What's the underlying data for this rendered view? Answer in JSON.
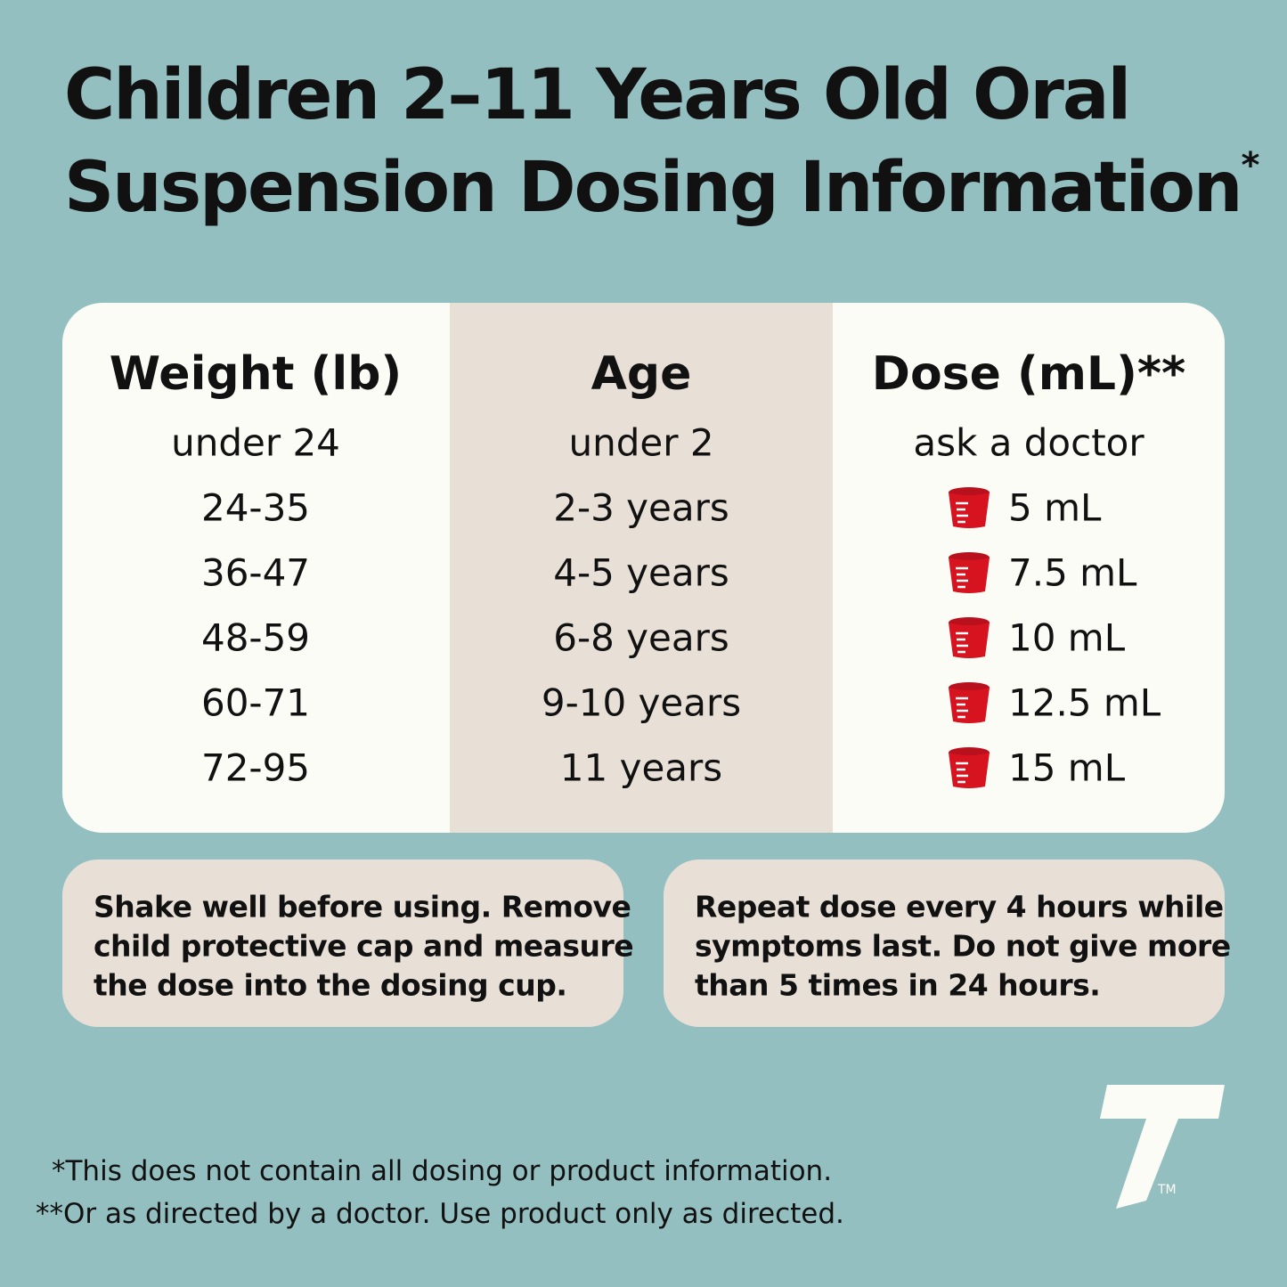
{
  "header": {
    "title_lines": [
      "Children 2–11 Years Old Oral",
      "Suspension Dosing Information"
    ],
    "title_mark": "*"
  },
  "table": {
    "headers": [
      "Weight (lb)",
      "Age",
      "Dose (mL)**"
    ],
    "rows": [
      [
        "under 24",
        "under 2",
        "ask a doctor"
      ],
      [
        "24-35",
        "2-3 years",
        "5 mL"
      ],
      [
        "36-47",
        "4-5 years",
        "7.5 mL"
      ],
      [
        "48-59",
        "6-8 years",
        "10 mL"
      ],
      [
        "60-71",
        "9-10 years",
        "12.5 mL"
      ],
      [
        "72-95",
        "11 years",
        "15 mL"
      ]
    ]
  },
  "notes": [
    [
      "Shake well before using. Remove",
      "child protective cap and measure",
      "the dose into the dosing cup."
    ],
    [
      "Repeat dose every 4 hours while",
      "symptoms last. Do not give more",
      "than 5 times in 24 hours."
    ]
  ],
  "footnotes": [
    "*This does not contain all dosing or product information.",
    "**Or as directed by a doctor. Use product only as directed."
  ],
  "logo": {
    "mark": "TM"
  }
}
